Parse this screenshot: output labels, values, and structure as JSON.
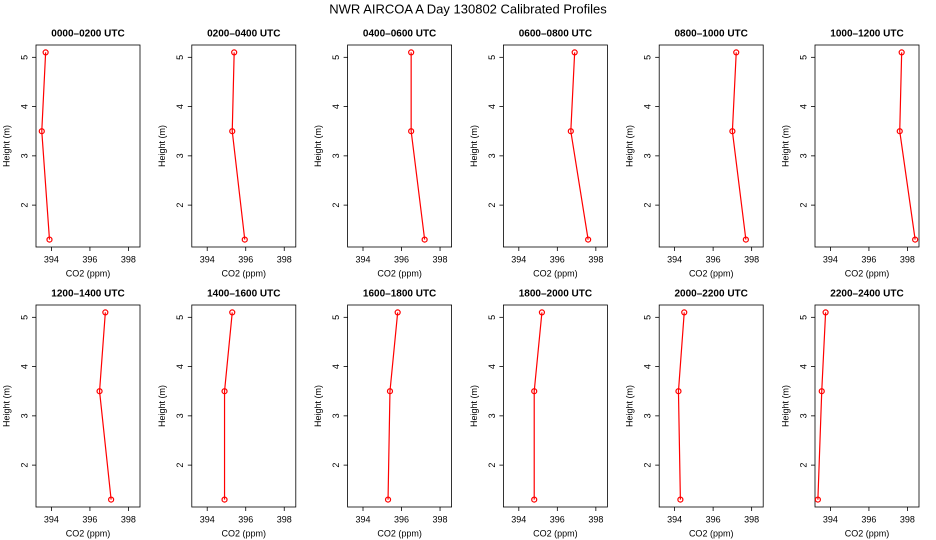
{
  "title": "NWR AIRCOA A  Day 130802  Calibrated Profiles",
  "chart_data": [
    {
      "type": "line",
      "title": "0000–0200 UTC",
      "x_label": "CO2 (ppm)",
      "y_label": "Height (m)",
      "color": "#ff0000",
      "xlim": [
        393.2,
        398.6
      ],
      "ylim": [
        1.15,
        5.25
      ],
      "xticks": [
        394,
        396,
        398
      ],
      "yticks": [
        2,
        3,
        4,
        5
      ],
      "x": [
        393.7,
        393.5,
        393.9
      ],
      "values": [
        5.1,
        3.5,
        1.3
      ]
    },
    {
      "type": "line",
      "title": "0200–0400 UTC",
      "x_label": "CO2 (ppm)",
      "y_label": "Height (m)",
      "color": "#ff0000",
      "xlim": [
        393.2,
        398.6
      ],
      "ylim": [
        1.15,
        5.25
      ],
      "xticks": [
        394,
        396,
        398
      ],
      "yticks": [
        2,
        3,
        4,
        5
      ],
      "x": [
        395.4,
        395.3,
        395.95
      ],
      "values": [
        5.1,
        3.5,
        1.3
      ]
    },
    {
      "type": "line",
      "title": "0400–0600 UTC",
      "x_label": "CO2 (ppm)",
      "y_label": "Height (m)",
      "color": "#ff0000",
      "xlim": [
        393.2,
        398.6
      ],
      "ylim": [
        1.15,
        5.25
      ],
      "xticks": [
        394,
        396,
        398
      ],
      "yticks": [
        2,
        3,
        4,
        5
      ],
      "x": [
        396.5,
        396.5,
        397.2
      ],
      "values": [
        5.1,
        3.5,
        1.3
      ]
    },
    {
      "type": "line",
      "title": "0600–0800 UTC",
      "x_label": "CO2 (ppm)",
      "y_label": "Height (m)",
      "color": "#ff0000",
      "xlim": [
        393.2,
        398.6
      ],
      "ylim": [
        1.15,
        5.25
      ],
      "xticks": [
        394,
        396,
        398
      ],
      "yticks": [
        2,
        3,
        4,
        5
      ],
      "x": [
        396.9,
        396.7,
        397.6
      ],
      "values": [
        5.1,
        3.5,
        1.3
      ]
    },
    {
      "type": "line",
      "title": "0800–1000 UTC",
      "x_label": "CO2 (ppm)",
      "y_label": "Height (m)",
      "color": "#ff0000",
      "xlim": [
        393.2,
        398.6
      ],
      "ylim": [
        1.15,
        5.25
      ],
      "xticks": [
        394,
        396,
        398
      ],
      "yticks": [
        2,
        3,
        4,
        5
      ],
      "x": [
        397.2,
        397.0,
        397.7
      ],
      "values": [
        5.1,
        3.5,
        1.3
      ]
    },
    {
      "type": "line",
      "title": "1000–1200 UTC",
      "x_label": "CO2 (ppm)",
      "y_label": "Height (m)",
      "color": "#ff0000",
      "xlim": [
        393.2,
        398.6
      ],
      "ylim": [
        1.15,
        5.25
      ],
      "xticks": [
        394,
        396,
        398
      ],
      "yticks": [
        2,
        3,
        4,
        5
      ],
      "x": [
        397.7,
        397.6,
        398.4
      ],
      "values": [
        5.1,
        3.5,
        1.3
      ]
    },
    {
      "type": "line",
      "title": "1200–1400 UTC",
      "x_label": "CO2 (ppm)",
      "y_label": "Height (m)",
      "color": "#ff0000",
      "xlim": [
        393.2,
        398.6
      ],
      "ylim": [
        1.15,
        5.25
      ],
      "xticks": [
        394,
        396,
        398
      ],
      "yticks": [
        2,
        3,
        4,
        5
      ],
      "x": [
        396.8,
        396.5,
        397.1
      ],
      "values": [
        5.1,
        3.5,
        1.3
      ]
    },
    {
      "type": "line",
      "title": "1400–1600 UTC",
      "x_label": "CO2 (ppm)",
      "y_label": "Height (m)",
      "color": "#ff0000",
      "xlim": [
        393.2,
        398.6
      ],
      "ylim": [
        1.15,
        5.25
      ],
      "xticks": [
        394,
        396,
        398
      ],
      "yticks": [
        2,
        3,
        4,
        5
      ],
      "x": [
        395.3,
        394.9,
        394.9
      ],
      "values": [
        5.1,
        3.5,
        1.3
      ]
    },
    {
      "type": "line",
      "title": "1600–1800 UTC",
      "x_label": "CO2 (ppm)",
      "y_label": "Height (m)",
      "color": "#ff0000",
      "xlim": [
        393.2,
        398.6
      ],
      "ylim": [
        1.15,
        5.25
      ],
      "xticks": [
        394,
        396,
        398
      ],
      "yticks": [
        2,
        3,
        4,
        5
      ],
      "x": [
        395.8,
        395.4,
        395.3
      ],
      "values": [
        5.1,
        3.5,
        1.3
      ]
    },
    {
      "type": "line",
      "title": "1800–2000 UTC",
      "x_label": "CO2 (ppm)",
      "y_label": "Height (m)",
      "color": "#ff0000",
      "xlim": [
        393.2,
        398.6
      ],
      "ylim": [
        1.15,
        5.25
      ],
      "xticks": [
        394,
        396,
        398
      ],
      "yticks": [
        2,
        3,
        4,
        5
      ],
      "x": [
        395.2,
        394.8,
        394.8
      ],
      "values": [
        5.1,
        3.5,
        1.3
      ]
    },
    {
      "type": "line",
      "title": "2000–2200 UTC",
      "x_label": "CO2 (ppm)",
      "y_label": "Height (m)",
      "color": "#ff0000",
      "xlim": [
        393.2,
        398.6
      ],
      "ylim": [
        1.15,
        5.25
      ],
      "xticks": [
        394,
        396,
        398
      ],
      "yticks": [
        2,
        3,
        4,
        5
      ],
      "x": [
        394.5,
        394.2,
        394.3
      ],
      "values": [
        5.1,
        3.5,
        1.3
      ]
    },
    {
      "type": "line",
      "title": "2200–2400 UTC",
      "x_label": "CO2 (ppm)",
      "y_label": "Height (m)",
      "color": "#ff0000",
      "xlim": [
        393.2,
        398.6
      ],
      "ylim": [
        1.15,
        5.25
      ],
      "xticks": [
        394,
        396,
        398
      ],
      "yticks": [
        2,
        3,
        4,
        5
      ],
      "x": [
        393.75,
        393.55,
        393.35
      ],
      "values": [
        5.1,
        3.5,
        1.3
      ]
    }
  ]
}
